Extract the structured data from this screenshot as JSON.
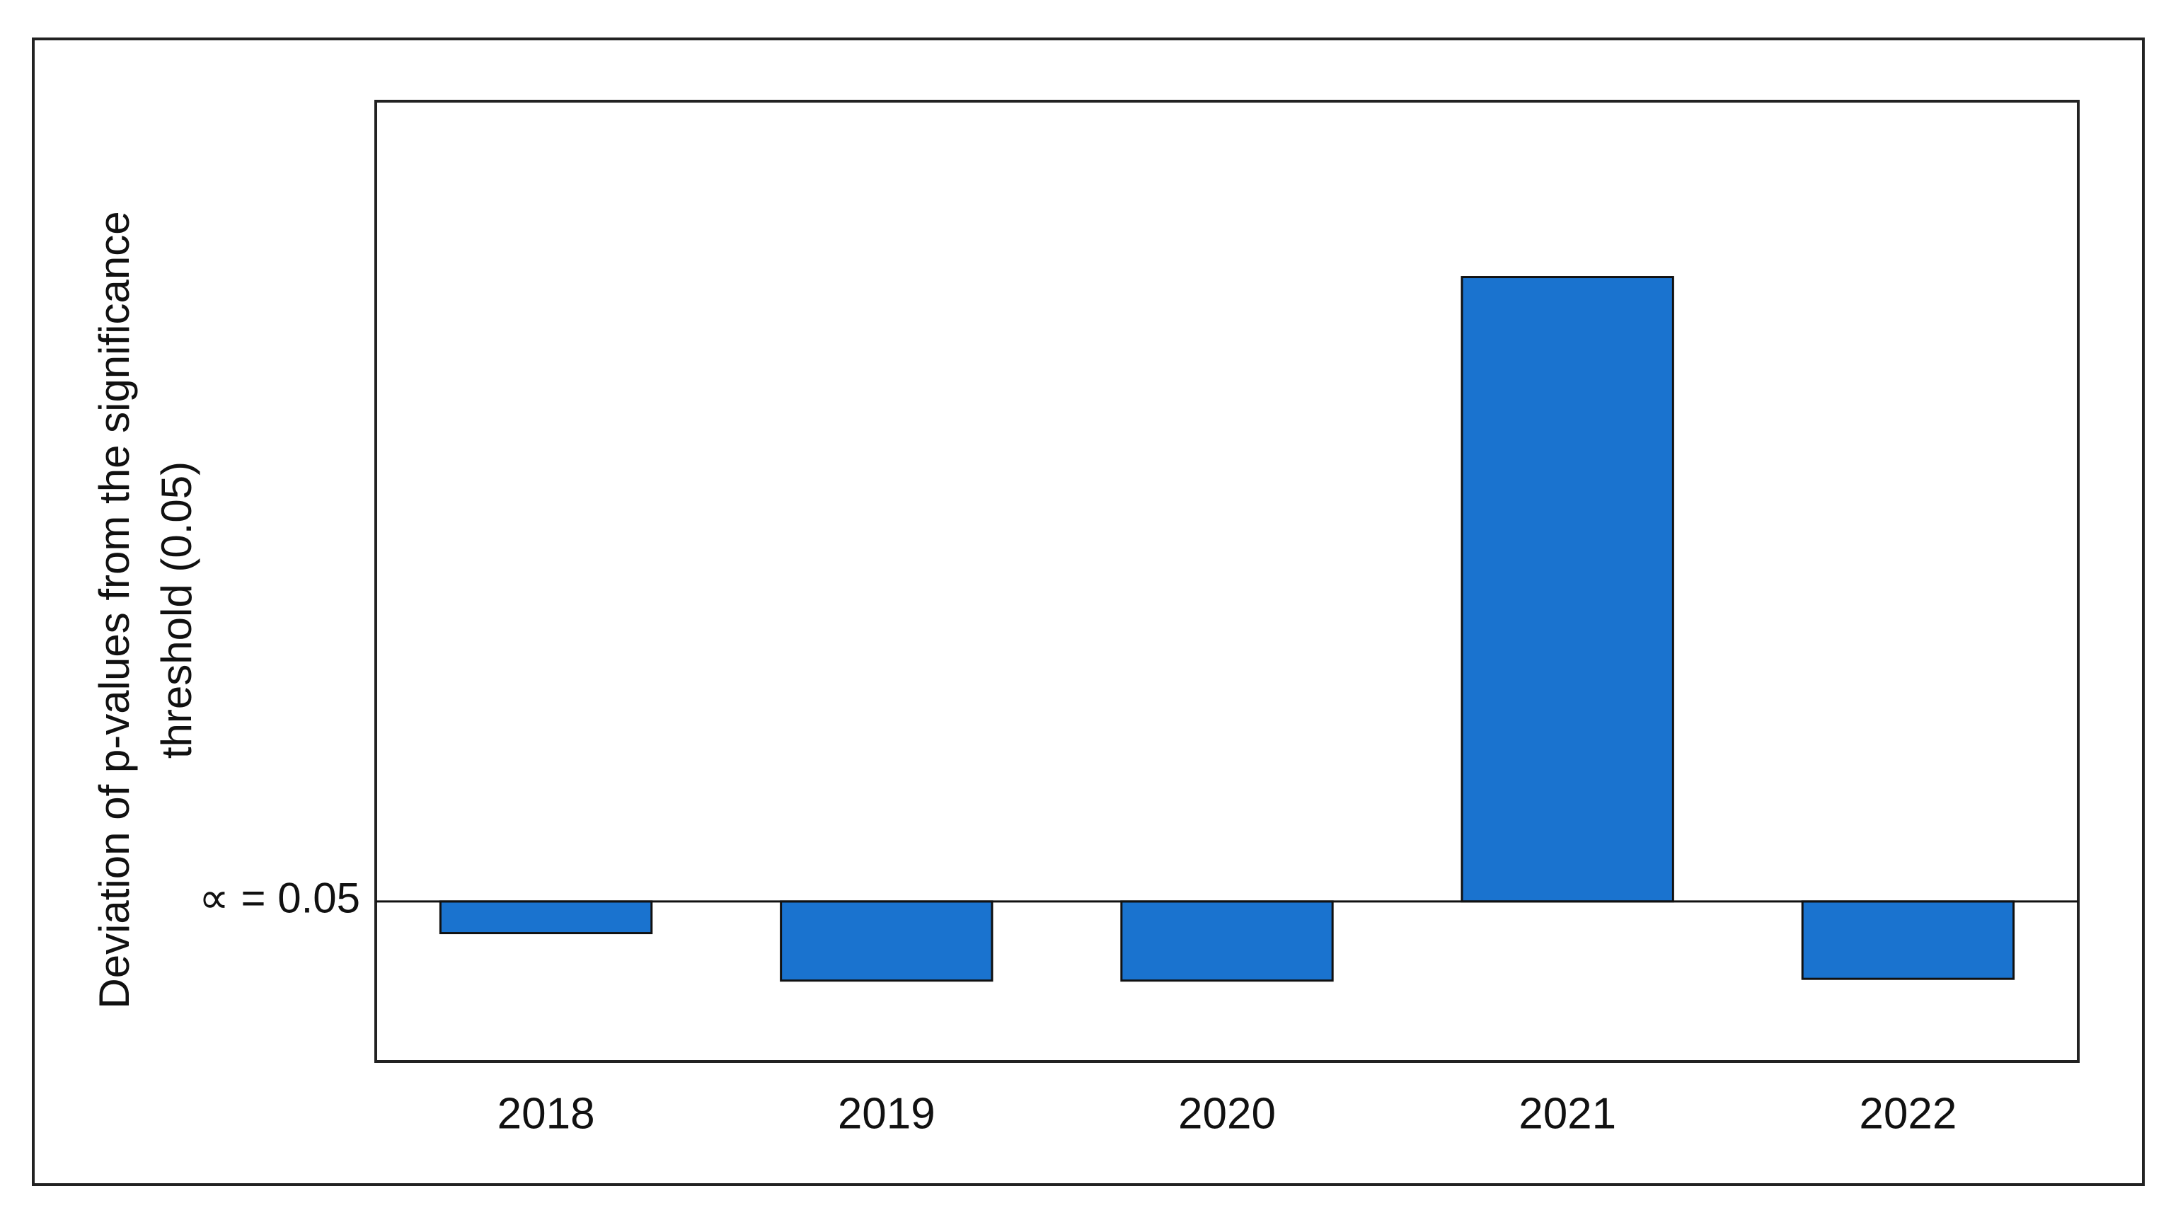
{
  "chart_data": {
    "type": "bar",
    "ylabel": [
      "Deviation of p-values from  the significance",
      "threshold (0.05)"
    ],
    "categories": [
      "2018",
      "2019",
      "2020",
      "2021",
      "2022"
    ],
    "values": [
      -0.018,
      -0.045,
      -0.045,
      0.355,
      -0.044
    ],
    "color": "#1a73cf",
    "ylim": [
      -0.091,
      0.455
    ],
    "yticks": [
      {
        "value": 0,
        "label": "∝ = 0.05"
      }
    ],
    "grid": false
  }
}
